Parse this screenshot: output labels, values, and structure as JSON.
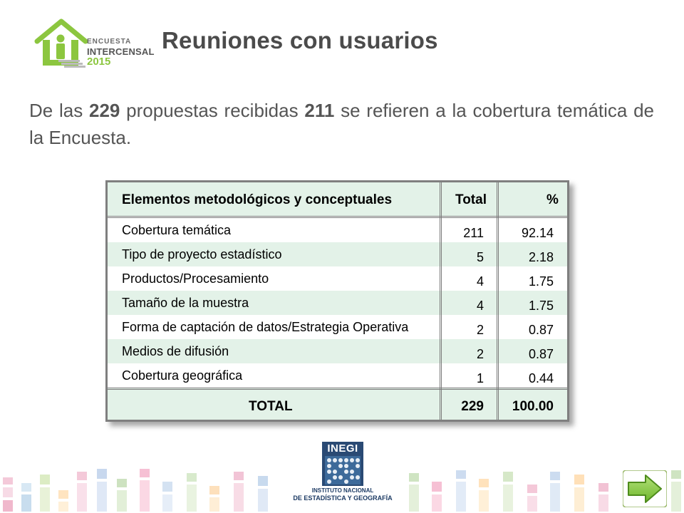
{
  "logo": {
    "line1": "ENCUESTA",
    "line2": "INTERCENSAL",
    "line3": "2015"
  },
  "title": "Reuniones con usuarios",
  "intro": {
    "part1": "De las ",
    "n_total": "229",
    "part2": " propuestas recibidas ",
    "n_topic": "211",
    "part3": " se refieren a la cobertura temática de la Encuesta."
  },
  "table": {
    "headers": [
      "Elementos metodológicos y conceptuales",
      "Total",
      "%"
    ],
    "rows": [
      {
        "label": "Cobertura temática",
        "total": "211",
        "pct": "92.14"
      },
      {
        "label": "Tipo de proyecto estadístico",
        "total": "5",
        "pct": "2.18"
      },
      {
        "label": "Productos/Procesamiento",
        "total": "4",
        "pct": "1.75"
      },
      {
        "label": "Tamaño de la muestra",
        "total": "4",
        "pct": "1.75"
      },
      {
        "label": "Forma de captación de datos/Estrategia Operativa",
        "total": "2",
        "pct": "0.87"
      },
      {
        "label": "Medios de difusión",
        "total": "2",
        "pct": "0.87"
      },
      {
        "label": "Cobertura geográfica",
        "total": "1",
        "pct": "0.44"
      }
    ],
    "footer": {
      "label": "TOTAL",
      "total": "229",
      "pct": "100.00"
    }
  },
  "inegi": {
    "acronym": "INEGI",
    "name_line1": "INSTITUTO NACIONAL",
    "name_line2": "DE ESTADÍSTICA Y GEOGRAFÍA"
  },
  "colors": {
    "accent_green": "#8cc63f",
    "table_tint": "#e3f2e8",
    "inegi_blue": "#2a4a74"
  },
  "icons": {
    "next": "next-arrow-icon",
    "logo": "house-person-logo-icon"
  }
}
